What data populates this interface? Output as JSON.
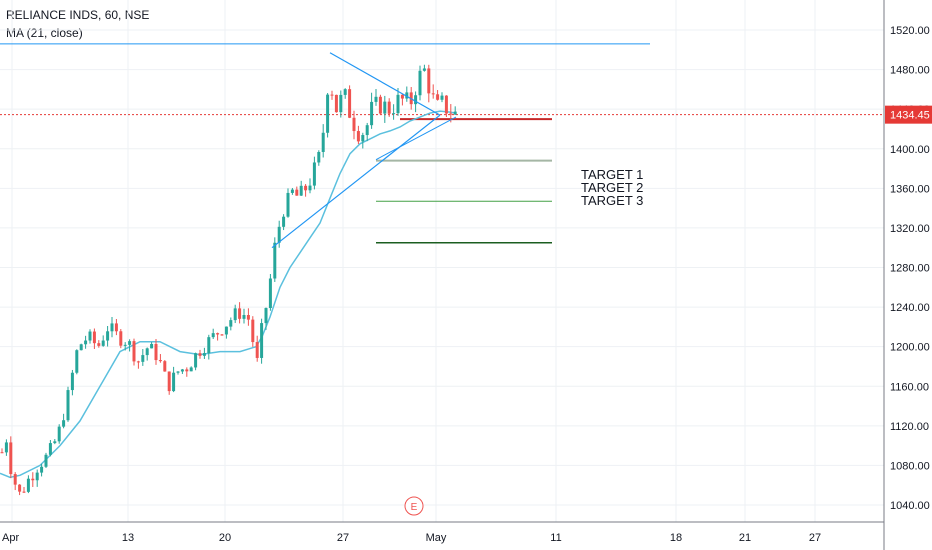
{
  "header": {
    "symbol_line": "RELIANCE INDS, 60, NSE",
    "indicator_line": "MA (21, close)"
  },
  "price_label": "1434.45",
  "earnings_marker": "E",
  "targets": [
    "TARGET 1",
    "TARGET 2",
    "TARGET 3"
  ],
  "colors": {
    "up": "#26a69a",
    "down": "#ef5350",
    "ma": "#5bc0de",
    "trendline": "#2196f3",
    "price_line": "#e53935",
    "grid": "#eef1f4",
    "target1": "#a5b6a5",
    "target2": "#43a047",
    "target3": "#1b5e20"
  },
  "chart_data": {
    "type": "candlestick",
    "symbol": "RELIANCE INDS",
    "interval": "60",
    "exchange": "NSE",
    "x_tick_labels": [
      "Apr",
      "13",
      "20",
      "27",
      "May",
      "11",
      "18",
      "21",
      "27"
    ],
    "y_ticks": [
      1040,
      1080,
      1120,
      1160,
      1200,
      1240,
      1280,
      1320,
      1360,
      1400,
      1440,
      1480,
      1520
    ],
    "ylim": [
      1008,
      1540
    ],
    "last_price": 1434.45,
    "close_path_x": [
      0,
      6,
      12,
      20,
      28,
      38,
      48,
      58,
      68,
      78,
      88,
      98,
      108,
      118,
      128,
      138,
      148,
      158,
      168,
      178,
      188,
      198,
      208,
      218,
      228,
      238,
      248,
      258,
      262,
      268,
      276,
      284,
      292,
      300,
      308,
      316,
      322,
      326,
      330,
      336,
      344,
      352,
      360,
      366,
      372,
      380,
      390,
      400,
      410,
      418,
      424,
      430,
      436,
      442,
      448,
      456
    ],
    "close_path_y": [
      1085,
      1110,
      1070,
      1050,
      1065,
      1080,
      1090,
      1110,
      1150,
      1200,
      1210,
      1200,
      1220,
      1210,
      1205,
      1185,
      1200,
      1190,
      1160,
      1175,
      1180,
      1195,
      1205,
      1215,
      1225,
      1235,
      1230,
      1180,
      1220,
      1250,
      1310,
      1340,
      1355,
      1350,
      1365,
      1380,
      1400,
      1460,
      1470,
      1440,
      1455,
      1430,
      1415,
      1420,
      1440,
      1445,
      1440,
      1450,
      1445,
      1470,
      1480,
      1460,
      1440,
      1445,
      1440,
      1434.45
    ],
    "moving_average": {
      "name": "MA (21, close)",
      "x": [
        0,
        10,
        20,
        40,
        60,
        80,
        100,
        120,
        140,
        160,
        180,
        200,
        220,
        240,
        256,
        262,
        270,
        280,
        290,
        300,
        310,
        320,
        330,
        340,
        350,
        360,
        370,
        380,
        390,
        400,
        410,
        420,
        430,
        440,
        450,
        456
      ],
      "y": [
        1072,
        1068,
        1070,
        1080,
        1100,
        1125,
        1160,
        1195,
        1205,
        1205,
        1195,
        1192,
        1195,
        1195,
        1200,
        1210,
        1230,
        1260,
        1280,
        1295,
        1310,
        1325,
        1350,
        1375,
        1395,
        1405,
        1410,
        1415,
        1418,
        1422,
        1428,
        1432,
        1436,
        1438,
        1437,
        1436
      ]
    },
    "horizontal_levels": [
      {
        "name": "resistance",
        "price": 1506
      },
      {
        "name": "entry",
        "price": 1430
      },
      {
        "name": "TARGET 1",
        "price": 1388
      },
      {
        "name": "TARGET 2",
        "price": 1347
      },
      {
        "name": "TARGET 3",
        "price": 1305
      }
    ],
    "triangle_pattern": {
      "upper_line": [
        [
          330,
          1497
        ],
        [
          440,
          1434
        ]
      ],
      "lower_line": [
        [
          272,
          1300
        ],
        [
          440,
          1434
        ]
      ]
    }
  }
}
